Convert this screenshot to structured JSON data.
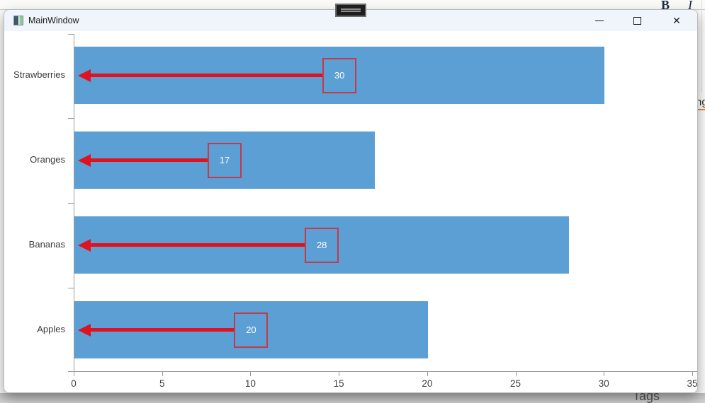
{
  "window": {
    "title": "MainWindow",
    "controls": {
      "minimize": "minimize",
      "maximize": "maximize",
      "close": "✕"
    }
  },
  "desktop_background": {
    "bold_button_label": "B",
    "italic_button_label": "I",
    "clipped_text_right_edge": "ng",
    "tags_label": "Tags"
  },
  "chart_data": {
    "type": "bar",
    "orientation": "horizontal",
    "title": "",
    "xlabel": "",
    "ylabel": "",
    "categories": [
      "Strawberries",
      "Oranges",
      "Bananas",
      "Apples"
    ],
    "values": [
      30,
      17,
      28,
      20
    ],
    "value_labels": [
      "30",
      "17",
      "28",
      "20"
    ],
    "xlim": [
      0,
      35
    ],
    "xticks": [
      0,
      5,
      10,
      15,
      20,
      25,
      30,
      35
    ],
    "grid": false,
    "legend": false,
    "bar_color": "#5b9fd4",
    "arrow_color": "#e01220",
    "annotation_box_border_color": "#c53a48",
    "annotation_text_color": "#ffffff",
    "axis_color": "#9b9b9b",
    "annotations_note": "red left-pointing arrow from each value box (at bar midpoint) to the y-axis"
  }
}
